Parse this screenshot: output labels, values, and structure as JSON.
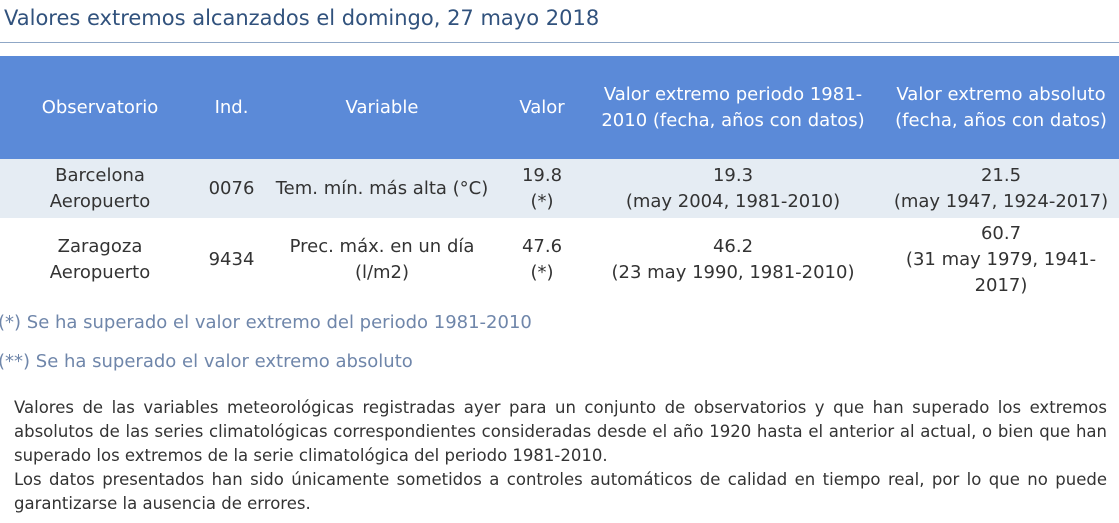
{
  "page": {
    "title": "Valores extremos alcanzados el domingo, 27 mayo 2018"
  },
  "table": {
    "headers": {
      "observatorio": "Observatorio",
      "ind": "Ind.",
      "variable": "Variable",
      "valor": "Valor",
      "periodo": "Valor extremo periodo 1981-2010 (fecha, años con datos)",
      "absoluto": "Valor extremo absoluto (fecha, años con datos)"
    },
    "rows": [
      {
        "observatorio": "Barcelona Aeropuerto",
        "ind": "0076",
        "variable": "Tem. mín. más alta (°C)",
        "valor": "19.8",
        "valor_mark": "(*)",
        "periodo_valor": "19.3",
        "periodo_detalle": "(may 2004, 1981-2010)",
        "absoluto_valor": "21.5",
        "absoluto_detalle": "(may 1947, 1924-2017)"
      },
      {
        "observatorio": "Zaragoza Aeropuerto",
        "ind": "9434",
        "variable": "Prec. máx. en un día (l/m2)",
        "valor": "47.6",
        "valor_mark": "(*)",
        "periodo_valor": "46.2",
        "periodo_detalle": "(23 may 1990, 1981-2010)",
        "absoluto_valor": "60.7",
        "absoluto_detalle": "(31 may 1979, 1941-2017)"
      }
    ]
  },
  "notes": {
    "note_1": "(*) Se ha superado el valor extremo del periodo 1981-2010",
    "note_2": "(**) Se ha superado el valor extremo absoluto"
  },
  "description": {
    "paragraph_1": "Valores de las variables meteorológicas registradas ayer para un conjunto de observatorios y que han superado los extremos absolutos de las series climatológicas correspondientes consideradas desde el año 1920 hasta el anterior al actual, o bien que han superado los extremos de la serie climatológica del periodo 1981-2010.",
    "paragraph_2": "Los datos presentados han sido únicamente sometidos a controles automáticos de calidad en tiempo real, por lo que no puede garantizarse la ausencia de errores."
  }
}
